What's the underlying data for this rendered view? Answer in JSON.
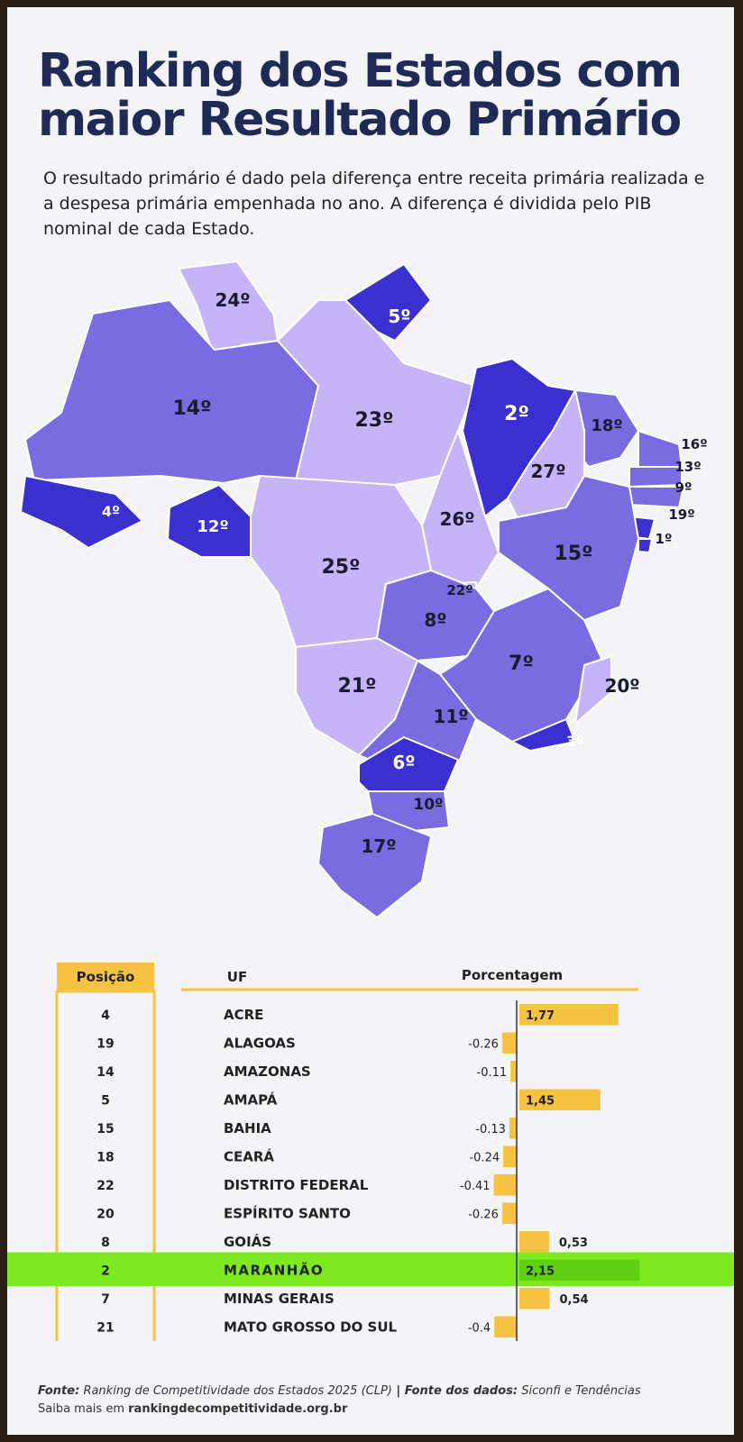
{
  "title_line1": "Ranking dos Estados com",
  "title_line2": "maior Resultado Primário",
  "subtitle": "O resultado primário é dado pela diferença entre receita primária realizada e a despesa primária empenhada no ano. A diferença é dividida pelo PIB nominal de cada Estado.",
  "colors": {
    "title": "#1f2a57",
    "rank_top": "#3b2fcf",
    "rank_mid": "#7a6be0",
    "rank_low": "#c5b4f7",
    "bar": "#f5c242",
    "highlight": "#7ee820",
    "header_box": "#f5c242"
  },
  "map_labels": [
    "24º",
    "5º",
    "14º",
    "23º",
    "2º",
    "18º",
    "16º",
    "13º",
    "9º",
    "27º",
    "4º",
    "12º",
    "26º",
    "19º",
    "1º",
    "15º",
    "25º",
    "22º",
    "8º",
    "7º",
    "20º",
    "21º",
    "11º",
    "3º",
    "6º",
    "10º",
    "17º"
  ],
  "table": {
    "headers": {
      "position": "Posição",
      "uf": "UF",
      "percent": "Porcentagem"
    },
    "highlight_index": 9
  },
  "chart_data": {
    "type": "bar",
    "orientation": "horizontal",
    "categories": [
      "ACRE",
      "ALAGOAS",
      "AMAZONAS",
      "AMAPÁ",
      "BAHIA",
      "CEARÁ",
      "DISTRITO FEDERAL",
      "ESPÍRITO SANTO",
      "GOIÁS",
      "MARANHÃO",
      "MINAS GERAIS",
      "MATO GROSSO DO SUL"
    ],
    "positions": [
      "4",
      "19",
      "14",
      "5",
      "15",
      "18",
      "22",
      "20",
      "8",
      "2",
      "7",
      "21"
    ],
    "values": [
      1.77,
      -0.26,
      -0.11,
      1.45,
      -0.13,
      -0.24,
      -0.41,
      -0.26,
      0.53,
      2.15,
      0.54,
      -0.4
    ],
    "value_labels": [
      "1,77",
      "-0.26",
      "-0.11",
      "1,45",
      "-0.13",
      "-0.24",
      "-0.41",
      "-0.26",
      "0,53",
      "2,15",
      "0,54",
      "-0.4"
    ],
    "xlabel": "Porcentagem"
  },
  "source": {
    "label1": "Fonte:",
    "text1": "Ranking de Competitividade dos Estados 2025 (CLP)",
    "sep": " | ",
    "label2": "Fonte dos dados:",
    "text2": "Siconfi e Tendências",
    "line2_prefix": "Saiba mais em",
    "line2_link": "rankingdecompetitividade.org.br"
  }
}
